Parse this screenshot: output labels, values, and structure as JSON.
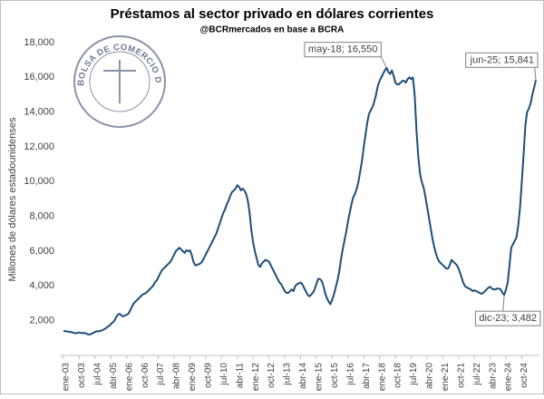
{
  "chart_data": {
    "type": "line",
    "title": "Préstamos al sector privado en dólares corrientes",
    "subtitle": "@BCRmercados en base a BCRA",
    "y_label": "Millones de dólares estadounidenses",
    "logo_text": "BOLSA DE COMERCIO DE ROSARIO",
    "color": "#1f4e79",
    "grid": false,
    "ylim": [
      0,
      18000
    ],
    "yticks": [
      {
        "value": 2000,
        "label": "2,000"
      },
      {
        "value": 4000,
        "label": "4,000"
      },
      {
        "value": 6000,
        "label": "6,000"
      },
      {
        "value": 8000,
        "label": "8,000"
      },
      {
        "value": 10000,
        "label": "10,000"
      },
      {
        "value": 12000,
        "label": "12,000"
      },
      {
        "value": 14000,
        "label": "14,000"
      },
      {
        "value": 16000,
        "label": "16,000"
      },
      {
        "value": 18000,
        "label": "18,000"
      }
    ],
    "categories": [
      "ene-03",
      null,
      null,
      null,
      null,
      null,
      null,
      null,
      null,
      "oct-03",
      null,
      null,
      null,
      null,
      null,
      null,
      null,
      null,
      "jul-04",
      null,
      null,
      null,
      null,
      null,
      null,
      null,
      null,
      "abr-05",
      null,
      null,
      null,
      null,
      null,
      null,
      null,
      null,
      "ene-06",
      null,
      null,
      null,
      null,
      null,
      null,
      null,
      null,
      "oct-06",
      null,
      null,
      null,
      null,
      null,
      null,
      null,
      null,
      "jul-07",
      null,
      null,
      null,
      null,
      null,
      null,
      null,
      null,
      "abr-08",
      null,
      null,
      null,
      null,
      null,
      null,
      null,
      null,
      "ene-09",
      null,
      null,
      null,
      null,
      null,
      null,
      null,
      null,
      "oct-09",
      null,
      null,
      null,
      null,
      null,
      null,
      null,
      null,
      "jul-10",
      null,
      null,
      null,
      null,
      null,
      null,
      null,
      null,
      "abr-11",
      null,
      null,
      null,
      null,
      null,
      null,
      null,
      null,
      "ene-12",
      null,
      null,
      null,
      null,
      null,
      null,
      null,
      null,
      "oct-12",
      null,
      null,
      null,
      null,
      null,
      null,
      null,
      null,
      "jul-13",
      null,
      null,
      null,
      null,
      null,
      null,
      null,
      null,
      "abr-14",
      null,
      null,
      null,
      null,
      null,
      null,
      null,
      null,
      "ene-15",
      null,
      null,
      null,
      null,
      null,
      null,
      null,
      null,
      "oct-15",
      null,
      null,
      null,
      null,
      null,
      null,
      null,
      null,
      "jul-16",
      null,
      null,
      null,
      null,
      null,
      null,
      null,
      null,
      "abr-17",
      null,
      null,
      null,
      null,
      null,
      null,
      null,
      null,
      "ene-18",
      null,
      null,
      null,
      null,
      null,
      null,
      null,
      null,
      "oct-18",
      null,
      null,
      null,
      null,
      null,
      null,
      null,
      null,
      "jul-19",
      null,
      null,
      null,
      null,
      null,
      null,
      null,
      null,
      "abr-20",
      null,
      null,
      null,
      null,
      null,
      null,
      null,
      null,
      "ene-21",
      null,
      null,
      null,
      null,
      null,
      null,
      null,
      null,
      "oct-21",
      null,
      null,
      null,
      null,
      null,
      null,
      null,
      null,
      "jul-22",
      null,
      null,
      null,
      null,
      null,
      null,
      null,
      null,
      "abr-23",
      null,
      null,
      null,
      null,
      null,
      null,
      null,
      null,
      "ene-24",
      null,
      null,
      null,
      null,
      null,
      null,
      null,
      null,
      "oct-24",
      null,
      null,
      null,
      null,
      null,
      null,
      null,
      null
    ],
    "values": [
      1400,
      1400,
      1380,
      1370,
      1350,
      1330,
      1300,
      1280,
      1300,
      1320,
      1300,
      1280,
      1300,
      1250,
      1220,
      1200,
      1250,
      1300,
      1350,
      1400,
      1380,
      1420,
      1450,
      1500,
      1550,
      1650,
      1700,
      1800,
      1900,
      2000,
      2200,
      2350,
      2400,
      2300,
      2250,
      2300,
      2350,
      2400,
      2600,
      2800,
      3000,
      3100,
      3200,
      3300,
      3400,
      3500,
      3550,
      3600,
      3700,
      3800,
      3900,
      4000,
      4200,
      4300,
      4500,
      4700,
      4900,
      5000,
      5100,
      5200,
      5300,
      5400,
      5600,
      5800,
      6000,
      6100,
      6200,
      6100,
      6000,
      5900,
      6050,
      6000,
      6050,
      5800,
      5400,
      5200,
      5200,
      5250,
      5300,
      5400,
      5600,
      5800,
      6000,
      6200,
      6400,
      6600,
      6800,
      7000,
      7300,
      7600,
      7900,
      8200,
      8400,
      8700,
      8900,
      9200,
      9400,
      9500,
      9600,
      9800,
      9700,
      9500,
      9600,
      9500,
      9300,
      8900,
      8200,
      7200,
      6500,
      6000,
      5600,
      5200,
      5100,
      5300,
      5400,
      5500,
      5450,
      5400,
      5200,
      5000,
      4800,
      4600,
      4400,
      4200,
      4100,
      3900,
      3700,
      3600,
      3600,
      3700,
      3800,
      3700,
      4000,
      4100,
      4150,
      4200,
      4100,
      3900,
      3700,
      3500,
      3400,
      3500,
      3600,
      3800,
      4100,
      4400,
      4400,
      4300,
      4000,
      3600,
      3300,
      3100,
      2950,
      3200,
      3500,
      3900,
      4300,
      4800,
      5500,
      6100,
      6600,
      7100,
      7700,
      8200,
      8700,
      9100,
      9300,
      9600,
      10000,
      10600,
      11200,
      12000,
      12700,
      13400,
      13900,
      14100,
      14300,
      14600,
      15000,
      15500,
      15800,
      16000,
      16200,
      16400,
      16550,
      16300,
      16200,
      16400,
      16100,
      15700,
      15600,
      15600,
      15700,
      15800,
      15800,
      15700,
      15900,
      16000,
      15900,
      16000,
      15000,
      13000,
      11500,
      10500,
      10000,
      9700,
      9200,
      8600,
      8000,
      7400,
      6800,
      6300,
      5900,
      5600,
      5400,
      5300,
      5200,
      5100,
      5000,
      5000,
      5200,
      5500,
      5400,
      5300,
      5200,
      5000,
      4700,
      4400,
      4100,
      3950,
      3900,
      3850,
      3800,
      3700,
      3750,
      3700,
      3650,
      3600,
      3550,
      3600,
      3700,
      3800,
      3900,
      3950,
      3850,
      3800,
      3800,
      3850,
      3850,
      3800,
      3600,
      3482,
      3800,
      4200,
      5200,
      6200,
      6400,
      6600,
      6800,
      7500,
      8500,
      10000,
      11500,
      13200,
      14000,
      14200,
      14500,
      15000,
      15400,
      15841
    ],
    "value_labels": [
      null,
      null,
      null,
      null,
      null,
      null,
      null,
      null,
      null,
      null,
      null,
      null,
      null,
      null,
      null,
      null,
      null,
      null,
      null,
      null,
      null,
      null,
      null,
      null,
      null,
      null,
      null,
      null,
      null,
      null,
      null,
      null,
      null,
      null,
      null,
      null,
      null,
      null,
      null,
      null,
      null,
      null,
      null,
      null,
      null,
      null,
      null,
      null,
      null,
      null,
      null,
      null,
      null,
      null,
      null,
      null,
      null,
      null,
      null,
      null,
      null,
      null,
      null,
      null,
      null,
      null,
      null,
      null,
      null,
      null,
      null,
      null,
      null,
      null,
      null,
      null,
      null,
      null,
      null,
      null,
      null,
      null,
      null,
      null,
      null,
      null,
      null,
      null,
      null,
      null,
      null,
      null,
      null,
      null,
      null,
      null,
      null,
      null,
      null,
      null,
      null,
      null,
      null,
      null,
      null,
      null,
      null,
      null,
      null,
      null,
      null,
      null,
      null,
      null,
      null,
      null,
      null,
      null,
      null,
      null,
      null,
      null,
      null,
      null,
      null,
      null,
      null,
      null,
      null,
      null,
      null,
      null,
      null,
      null,
      null,
      null,
      null,
      null,
      null,
      null,
      null,
      null,
      null,
      null,
      null,
      null,
      null,
      null,
      null,
      null,
      null,
      null,
      null,
      null,
      null,
      null,
      null,
      null,
      null,
      null,
      null,
      null,
      null,
      null,
      null,
      null,
      null,
      null,
      null,
      null,
      null,
      null,
      null,
      null,
      null,
      null,
      null,
      null,
      null,
      null,
      null,
      null,
      null,
      null,
      "may-18; 16,550",
      null,
      null,
      null,
      null,
      null,
      null,
      null,
      null,
      null,
      null,
      null,
      null,
      null,
      null,
      null,
      null,
      null,
      null,
      null,
      null,
      null,
      null,
      null,
      null,
      null,
      null,
      null,
      null,
      null,
      null,
      null,
      null,
      null,
      null,
      null,
      null,
      null,
      null,
      null,
      null,
      null,
      null,
      null,
      null,
      null,
      null,
      null,
      null,
      null,
      null,
      null,
      null,
      null,
      null,
      null,
      null,
      null,
      null,
      null,
      null,
      null,
      null,
      null,
      null,
      null,
      null,
      "dic-23; 3,482",
      null,
      null,
      null,
      null,
      null,
      null,
      null,
      null,
      null,
      null,
      null,
      null,
      null,
      null,
      null,
      null,
      null,
      "jun-25; 15,841"
    ]
  }
}
